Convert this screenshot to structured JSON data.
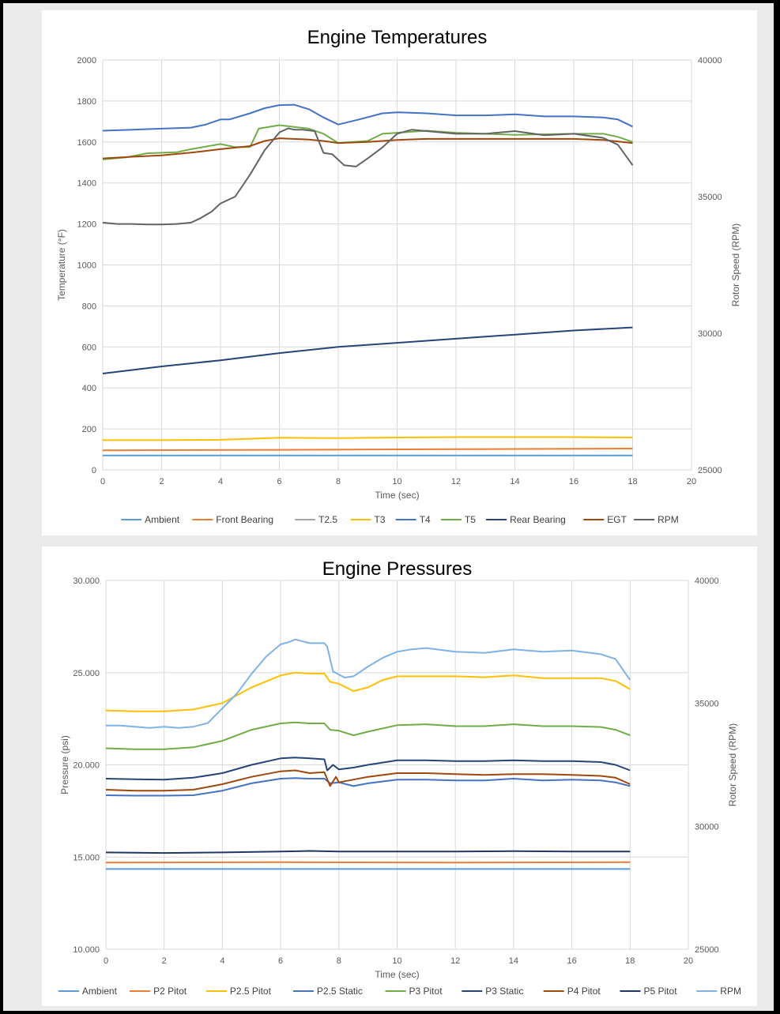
{
  "chart_data": [
    {
      "type": "line",
      "title": "Engine Temperatures",
      "xlabel": "Time (sec)",
      "ylabel": "Temperature (°F)",
      "y2label": "Rotor Speed (RPM)",
      "xlim": [
        0,
        20
      ],
      "ylim": [
        0,
        2000
      ],
      "y2lim": [
        25000,
        40000
      ],
      "xticks": [
        0,
        2,
        4,
        6,
        8,
        10,
        12,
        14,
        16,
        18,
        20
      ],
      "yticks": [
        0,
        200,
        400,
        600,
        800,
        1000,
        1200,
        1400,
        1600,
        1800,
        2000
      ],
      "y2ticks": [
        25000,
        30000,
        35000,
        40000
      ],
      "grid": true,
      "legend": "bottom",
      "series": [
        {
          "name": "Ambient",
          "color": "#5b9bd5",
          "axis": "left",
          "x": [
            0,
            18
          ],
          "y": [
            70,
            70
          ]
        },
        {
          "name": "Front Bearing",
          "color": "#ed7d31",
          "axis": "left",
          "x": [
            0,
            6,
            12,
            18
          ],
          "y": [
            95,
            98,
            101,
            104
          ]
        },
        {
          "name": "T2.5",
          "color": "#a5a5a5",
          "axis": "left",
          "x": [],
          "y": []
        },
        {
          "name": "T3",
          "color": "#ffc000",
          "axis": "left",
          "x": [
            0,
            2,
            4,
            5,
            6,
            8,
            10,
            12,
            14,
            16,
            18
          ],
          "y": [
            145,
            145,
            147,
            152,
            157,
            155,
            158,
            160,
            160,
            160,
            158
          ]
        },
        {
          "name": "T4",
          "color": "#4472c4",
          "axis": "left",
          "x": [
            0,
            1,
            2,
            3,
            3.5,
            4,
            4.3,
            5,
            5.5,
            6,
            6.5,
            7,
            7.5,
            8,
            8.7,
            9.5,
            10,
            11,
            12,
            13,
            14,
            15,
            16,
            17,
            17.5,
            18
          ],
          "y": [
            1655,
            1660,
            1665,
            1670,
            1685,
            1710,
            1710,
            1740,
            1765,
            1780,
            1782,
            1760,
            1720,
            1685,
            1710,
            1740,
            1745,
            1740,
            1730,
            1730,
            1735,
            1725,
            1725,
            1720,
            1710,
            1675
          ]
        },
        {
          "name": "T5",
          "color": "#70ad47",
          "axis": "left",
          "x": [
            0,
            0.8,
            1.5,
            2.5,
            3,
            4,
            4.5,
            5,
            5.3,
            6,
            7,
            7.5,
            8,
            9,
            9.5,
            10,
            11,
            12,
            14,
            16,
            17,
            17.5,
            18
          ],
          "y": [
            1515,
            1525,
            1545,
            1550,
            1565,
            1590,
            1575,
            1575,
            1665,
            1682,
            1665,
            1640,
            1595,
            1605,
            1640,
            1645,
            1655,
            1645,
            1635,
            1640,
            1640,
            1625,
            1600
          ]
        },
        {
          "name": "Rear Bearing",
          "color": "#264478",
          "axis": "left",
          "x": [
            0,
            2,
            4,
            6,
            8,
            10,
            12,
            14,
            16,
            18
          ],
          "y": [
            470,
            505,
            535,
            570,
            600,
            620,
            640,
            660,
            680,
            695
          ]
        },
        {
          "name": "EGT",
          "color": "#9e480e",
          "axis": "left",
          "x": [
            0,
            1,
            2,
            3,
            4,
            5,
            5.5,
            6,
            7,
            7.5,
            8,
            9,
            10,
            11,
            12,
            14,
            16,
            17,
            18
          ],
          "y": [
            1520,
            1528,
            1535,
            1548,
            1565,
            1580,
            1605,
            1618,
            1612,
            1605,
            1595,
            1600,
            1610,
            1615,
            1615,
            1615,
            1615,
            1610,
            1595
          ]
        },
        {
          "name": "RPM",
          "color": "#636363",
          "axis": "right",
          "x": [
            0,
            0.5,
            1,
            1.5,
            2,
            2.5,
            3,
            3.3,
            3.7,
            4,
            4.5,
            5,
            5.5,
            6,
            6.3,
            6.5,
            6.8,
            7.2,
            7.5,
            7.8,
            8.2,
            8.6,
            9,
            9.5,
            10,
            10.5,
            11,
            12,
            13,
            14,
            15,
            16,
            17,
            17.5,
            18
          ],
          "y": [
            34050,
            34000,
            34000,
            33980,
            33980,
            34000,
            34050,
            34200,
            34450,
            34750,
            35000,
            35800,
            36700,
            37350,
            37500,
            37450,
            37450,
            37400,
            36600,
            36550,
            36150,
            36100,
            36400,
            36800,
            37300,
            37450,
            37400,
            37300,
            37300,
            37400,
            37250,
            37300,
            37150,
            36900,
            36150
          ]
        }
      ]
    },
    {
      "type": "line",
      "title": "Engine Pressures",
      "xlabel": "Time (sec)",
      "ylabel": "Pressure (psi)",
      "y2label": "Rotor Speed (RPM)",
      "xlim": [
        0,
        20
      ],
      "ylim": [
        10,
        30
      ],
      "y2lim": [
        25000,
        40000
      ],
      "xticks": [
        0,
        2,
        4,
        6,
        8,
        10,
        12,
        14,
        16,
        18,
        20
      ],
      "yticks": [
        "10.000",
        "15.000",
        "20.000",
        "25.000",
        "30.000"
      ],
      "y2ticks": [
        25000,
        30000,
        35000,
        40000
      ],
      "grid": true,
      "legend": "bottom",
      "series": [
        {
          "name": "Ambient",
          "color": "#5b9bd5",
          "axis": "left",
          "x": [
            0,
            18
          ],
          "y": [
            14.35,
            14.35
          ]
        },
        {
          "name": "P2 Pitot",
          "color": "#ed7d31",
          "axis": "left",
          "x": [
            0,
            6,
            12,
            18
          ],
          "y": [
            14.7,
            14.72,
            14.7,
            14.72
          ]
        },
        {
          "name": "P2.5 Pitot",
          "color": "#ffc000",
          "axis": "left",
          "x": [
            0,
            1,
            2,
            3,
            4,
            5,
            6,
            6.5,
            7,
            7.5,
            7.7,
            8,
            8.5,
            9,
            9.5,
            10,
            11,
            12,
            13,
            14,
            15,
            16,
            17,
            17.5,
            18
          ],
          "y": [
            22.95,
            22.9,
            22.9,
            23.0,
            23.35,
            24.2,
            24.85,
            25.0,
            24.95,
            24.95,
            24.5,
            24.4,
            24.0,
            24.2,
            24.6,
            24.8,
            24.8,
            24.8,
            24.75,
            24.85,
            24.7,
            24.7,
            24.7,
            24.55,
            24.1
          ]
        },
        {
          "name": "P2.5 Static",
          "color": "#4472c4",
          "axis": "left",
          "x": [
            0,
            1,
            2,
            3,
            4,
            5,
            6,
            6.5,
            7,
            7.5,
            7.7,
            8,
            8.5,
            9,
            10,
            11,
            12,
            13,
            14,
            15,
            16,
            17,
            17.5,
            18
          ],
          "y": [
            18.35,
            18.33,
            18.33,
            18.35,
            18.6,
            19.0,
            19.25,
            19.28,
            19.25,
            19.25,
            19.0,
            19.05,
            18.85,
            19.0,
            19.2,
            19.2,
            19.15,
            19.15,
            19.25,
            19.15,
            19.2,
            19.15,
            19.05,
            18.85
          ]
        },
        {
          "name": "P3 Pitot",
          "color": "#70ad47",
          "axis": "left",
          "x": [
            0,
            1,
            2,
            3,
            4,
            5,
            6,
            6.5,
            7,
            7.5,
            7.7,
            8,
            8.5,
            9,
            10,
            11,
            12,
            13,
            14,
            15,
            16,
            17,
            17.5,
            18
          ],
          "y": [
            20.9,
            20.85,
            20.85,
            20.95,
            21.3,
            21.9,
            22.25,
            22.3,
            22.25,
            22.25,
            21.9,
            21.85,
            21.6,
            21.8,
            22.15,
            22.2,
            22.1,
            22.1,
            22.2,
            22.1,
            22.1,
            22.05,
            21.9,
            21.6
          ]
        },
        {
          "name": "P3 Static",
          "color": "#264478",
          "axis": "left",
          "x": [
            0,
            1,
            2,
            3,
            4,
            5,
            6,
            6.5,
            7,
            7.5,
            7.6,
            7.8,
            8,
            8.5,
            9,
            10,
            11,
            12,
            13,
            14,
            15,
            16,
            17,
            17.5,
            18
          ],
          "y": [
            19.25,
            19.22,
            19.2,
            19.3,
            19.55,
            20.0,
            20.35,
            20.4,
            20.35,
            20.3,
            19.7,
            20.0,
            19.75,
            19.85,
            20.0,
            20.25,
            20.25,
            20.2,
            20.2,
            20.25,
            20.2,
            20.2,
            20.15,
            20.0,
            19.7
          ]
        },
        {
          "name": "P4 Pitot",
          "color": "#9e480e",
          "axis": "left",
          "x": [
            0,
            1,
            2,
            3,
            4,
            5,
            6,
            6.5,
            7,
            7.5,
            7.7,
            7.9,
            8,
            8.5,
            9,
            10,
            11,
            12,
            13,
            14,
            15,
            16,
            17,
            17.5,
            18
          ],
          "y": [
            18.65,
            18.6,
            18.6,
            18.65,
            18.95,
            19.35,
            19.65,
            19.7,
            19.55,
            19.6,
            18.85,
            19.35,
            19.05,
            19.2,
            19.35,
            19.55,
            19.55,
            19.5,
            19.45,
            19.5,
            19.5,
            19.45,
            19.4,
            19.3,
            18.95
          ]
        },
        {
          "name": "P5 Pitot",
          "color": "#1f3864",
          "axis": "left",
          "x": [
            0,
            2,
            4,
            6,
            7,
            8,
            10,
            12,
            14,
            16,
            18
          ],
          "y": [
            15.25,
            15.22,
            15.25,
            15.3,
            15.33,
            15.3,
            15.3,
            15.3,
            15.32,
            15.3,
            15.3
          ]
        },
        {
          "name": "RPM",
          "color": "#7fb2e5",
          "axis": "right",
          "x": [
            0,
            0.5,
            1,
            1.5,
            2,
            2.5,
            3,
            3.5,
            4,
            4.5,
            5,
            5.5,
            6,
            6.3,
            6.5,
            7,
            7.5,
            7.6,
            7.8,
            8.2,
            8.5,
            9,
            9.5,
            10,
            10.5,
            11,
            12,
            13,
            14,
            15,
            16,
            17,
            17.5,
            18
          ],
          "y": [
            34100,
            34100,
            34050,
            34000,
            34050,
            34000,
            34050,
            34200,
            34800,
            35400,
            36200,
            36900,
            37400,
            37500,
            37600,
            37450,
            37450,
            37300,
            36300,
            36050,
            36100,
            36500,
            36850,
            37100,
            37200,
            37250,
            37100,
            37050,
            37200,
            37100,
            37150,
            37000,
            36800,
            35950
          ]
        }
      ]
    }
  ]
}
